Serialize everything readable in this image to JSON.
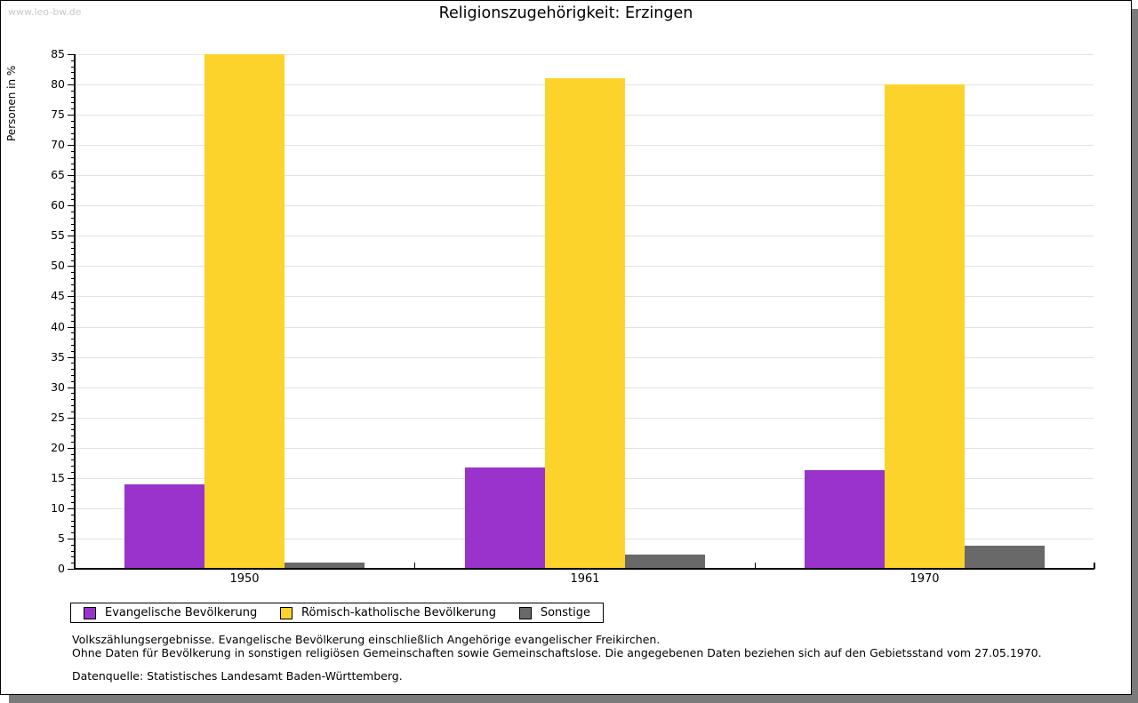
{
  "watermark": "www.leo-bw.de",
  "title": "Religionszugehörigkeit: Erzingen",
  "chart_data": {
    "type": "bar",
    "title": "Religionszugehörigkeit: Erzingen",
    "categories": [
      "1950",
      "1961",
      "1970"
    ],
    "series": [
      {
        "name": "Evangelische Bevölkerung",
        "color": "#9933cc",
        "values": [
          14,
          16.8,
          16.3
        ]
      },
      {
        "name": "Römisch-katholische Bevölkerung",
        "color": "#fcd32b",
        "values": [
          85,
          81,
          80
        ]
      },
      {
        "name": "Sonstige",
        "color": "#696969",
        "values": [
          1,
          2.3,
          3.8
        ]
      }
    ],
    "xlabel": "",
    "ylabel": "Personen in %",
    "ylim": [
      0,
      85
    ],
    "ytick_major": 5,
    "ytick_minor": 1,
    "grid": true,
    "gridline_color": "#e2e2e2",
    "legend_position": "bottom-left"
  },
  "footnotes": [
    "Volkszählungsergebnisse. Evangelische Bevölkerung einschließlich Angehörige evangelischer Freikirchen.",
    "Ohne Daten für Bevölkerung in sonstigen religiösen Gemeinschaften sowie Gemeinschaftslose. Die angegebenen Daten beziehen sich auf den Gebietsstand vom 27.05.1970."
  ],
  "source": "Datenquelle: Statistisches Landesamt Baden-Württemberg."
}
